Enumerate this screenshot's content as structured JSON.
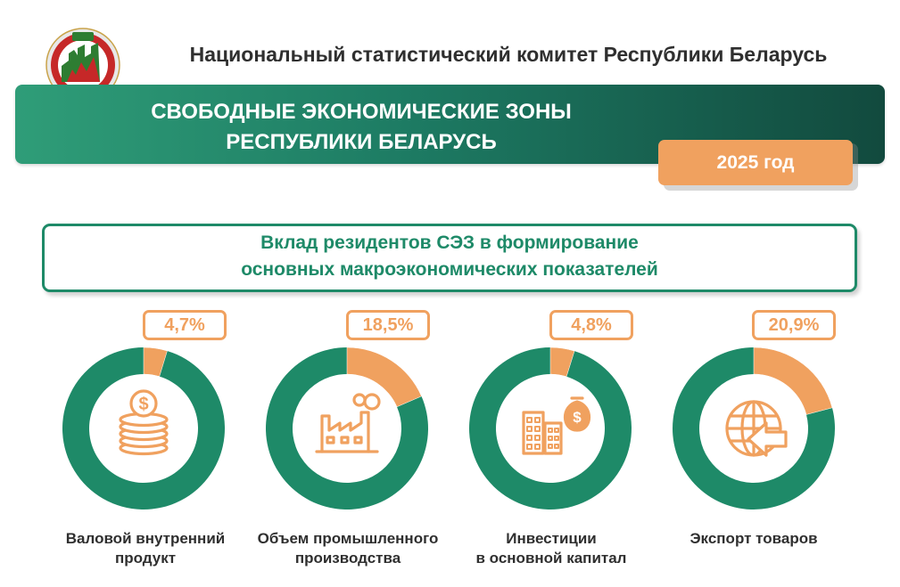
{
  "header": {
    "org_title": "Национальный статистический комитет Республики Беларусь",
    "banner_line1": "СВОБОДНЫЕ ЭКОНОМИЧЕСКИЕ ЗОНЫ",
    "banner_line2": "РЕСПУБЛИКИ БЕЛАРУСЬ",
    "year": "2025 год"
  },
  "subtitle": {
    "line1": "Вклад резидентов СЭЗ в формирование",
    "line2": "основных макроэкономических показателей"
  },
  "colors": {
    "primary_green": "#1e8a68",
    "accent_orange": "#f0a15f",
    "text_dark": "#2f2f2f"
  },
  "chart_data": {
    "type": "pie",
    "donut": true,
    "charts": [
      {
        "value": 4.7,
        "value_label": "4,7%",
        "label_lines": [
          "Валовой внутренний",
          "продукт"
        ],
        "icon": "coins-icon"
      },
      {
        "value": 18.5,
        "value_label": "18,5%",
        "label_lines": [
          "Объем промышленного",
          "производства"
        ],
        "icon": "factory-icon"
      },
      {
        "value": 4.8,
        "value_label": "4,8%",
        "label_lines": [
          "Инвестиции",
          "в основной капитал"
        ],
        "icon": "buildings-moneybag-icon"
      },
      {
        "value": 20.9,
        "value_label": "20,9%",
        "label_lines": [
          "Экспорт товаров"
        ],
        "icon": "globe-export-icon"
      }
    ]
  }
}
